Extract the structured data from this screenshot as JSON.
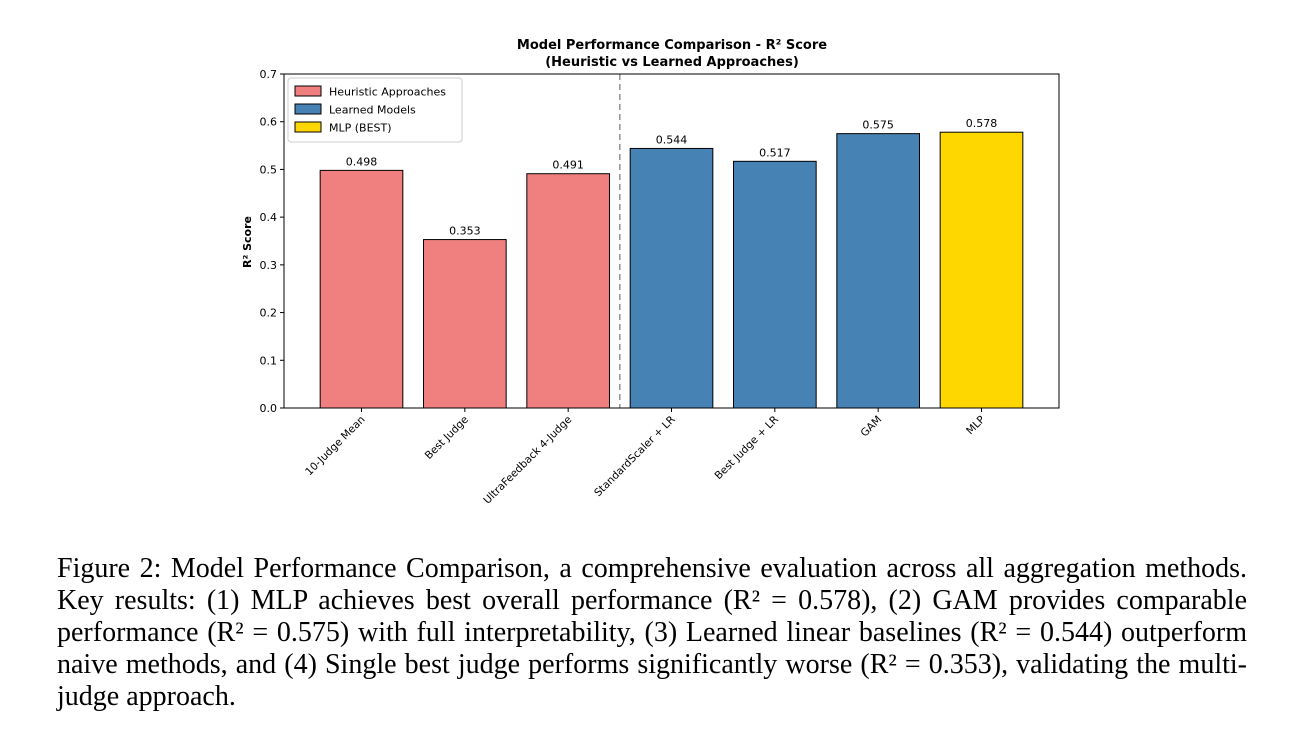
{
  "chart_data": {
    "type": "bar",
    "title": "Model Performance Comparison - R² Score",
    "subtitle": "(Heuristic vs Learned Approaches)",
    "xlabel": "",
    "ylabel": "R² Score",
    "ylim": [
      0,
      0.7
    ],
    "yticks": [
      "0.0",
      "0.1",
      "0.2",
      "0.3",
      "0.4",
      "0.5",
      "0.6",
      "0.7"
    ],
    "grid": false,
    "legend_position": "top-left",
    "categories": [
      "10-Judge Mean",
      "Best Judge",
      "UltraFeedback 4-Judge",
      "StandardScaler + LR",
      "Best Judge + LR",
      "GAM",
      "MLP"
    ],
    "values": [
      0.498,
      0.353,
      0.491,
      0.544,
      0.517,
      0.575,
      0.578
    ],
    "value_labels": [
      "0.498",
      "0.353",
      "0.491",
      "0.544",
      "0.517",
      "0.575",
      "0.578"
    ],
    "groups": [
      "heuristic",
      "heuristic",
      "heuristic",
      "learned",
      "learned",
      "learned",
      "best"
    ],
    "colors": {
      "heuristic": "#f08080",
      "learned": "#4682b4",
      "best": "#ffd700"
    },
    "legend": [
      {
        "label": "Heuristic Approaches",
        "group": "heuristic"
      },
      {
        "label": "Learned Models",
        "group": "learned"
      },
      {
        "label": "MLP (BEST)",
        "group": "best"
      }
    ],
    "separator_after_index": 2
  },
  "caption": "Figure 2: Model Performance Comparison, a comprehensive evaluation across all aggregation methods. Key results: (1) MLP achieves best overall performance (R² = 0.578), (2) GAM provides comparable performance (R² = 0.575) with full interpretability, (3) Learned linear baselines (R² = 0.544) outperform naive methods, and (4) Single best judge performs significantly worse (R² = 0.353), validating the multi-judge approach."
}
